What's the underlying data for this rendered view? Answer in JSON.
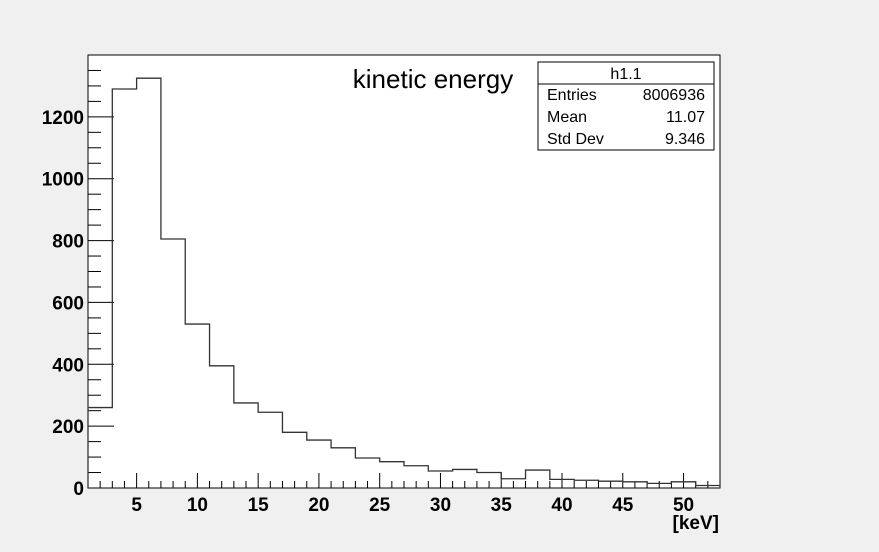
{
  "chart_data": {
    "type": "bar",
    "title": "kinetic energy",
    "xlabel": "[keV]",
    "ylabel": "",
    "xlim": [
      1,
      53
    ],
    "ylim": [
      0,
      1400
    ],
    "x_ticks": [
      5,
      10,
      15,
      20,
      25,
      30,
      35,
      40,
      45,
      50
    ],
    "y_ticks": [
      0,
      200,
      400,
      600,
      800,
      1000,
      1200
    ],
    "bin_edges": [
      1,
      3,
      5,
      7,
      9,
      11,
      13,
      15,
      17,
      19,
      21,
      23,
      25,
      27,
      29,
      31,
      33,
      35,
      37,
      39,
      41,
      43,
      45,
      47,
      49,
      51,
      53
    ],
    "values": [
      260,
      1290,
      1325,
      805,
      530,
      395,
      275,
      245,
      180,
      155,
      130,
      97,
      85,
      72,
      55,
      60,
      50,
      30,
      58,
      28,
      25,
      22,
      20,
      15,
      20,
      8
    ],
    "grid": false,
    "legend": "none",
    "stats_box": {
      "name": "h1.1",
      "rows": [
        {
          "label": "Entries",
          "value": "8006936"
        },
        {
          "label": "Mean",
          "value": "11.07"
        },
        {
          "label": "Std Dev",
          "value": "9.346"
        }
      ]
    }
  }
}
